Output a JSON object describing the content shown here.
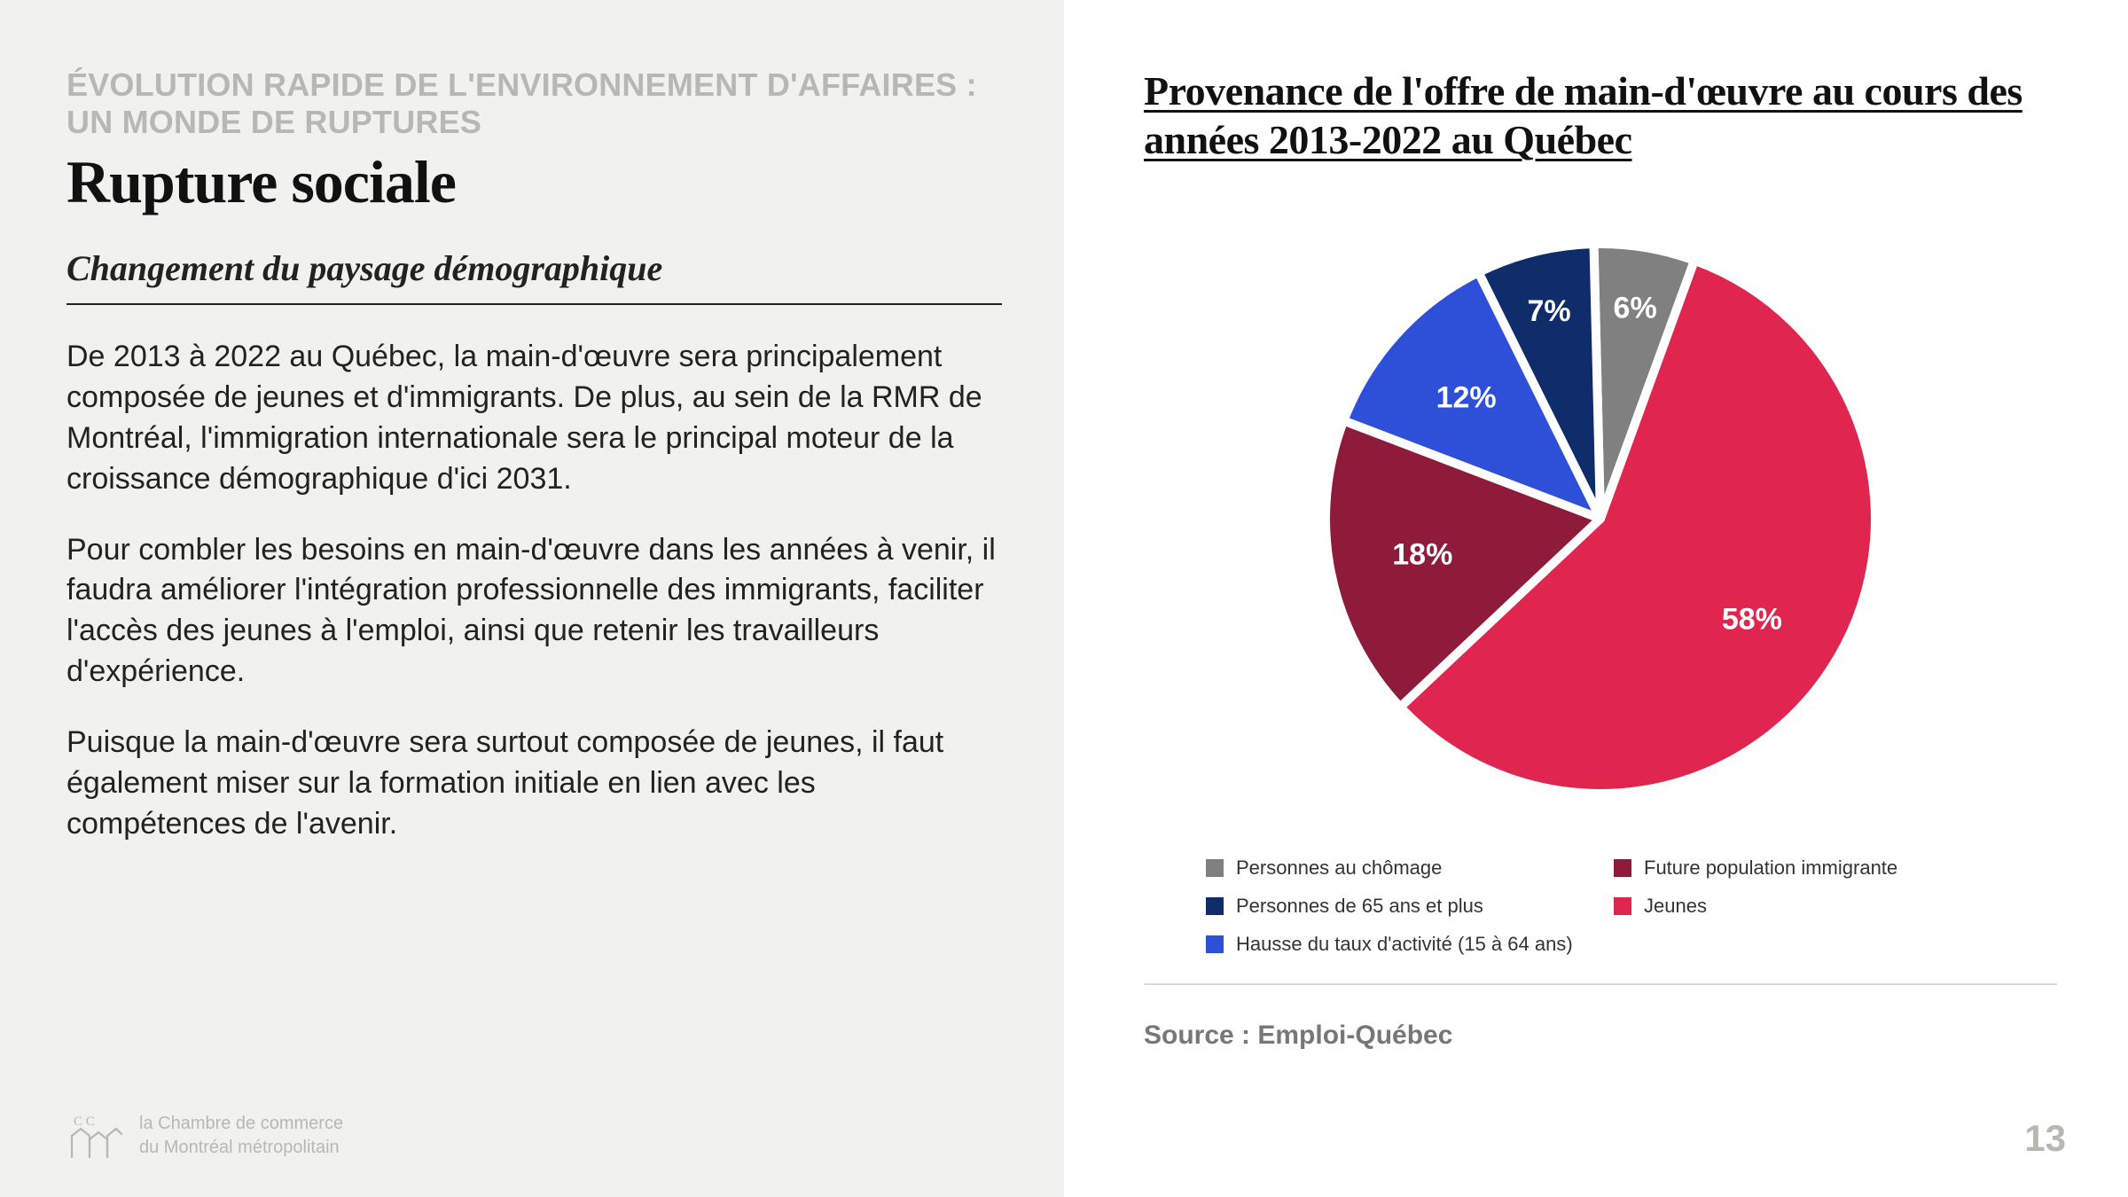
{
  "left": {
    "eyebrow": "ÉVOLUTION RAPIDE DE L'ENVIRONNEMENT D'AFFAIRES : UN MONDE DE RUPTURES",
    "title": "Rupture sociale",
    "subtitle": "Changement du paysage démographique",
    "paragraphs": [
      "De 2013 à 2022 au Québec, la main-d'œuvre sera principalement composée de jeunes et d'immigrants. De plus, au sein de la RMR de Montréal, l'immigration internationale sera le principal moteur de la croissance démographique d'ici 2031.",
      "Pour combler les besoins en main-d'œuvre dans les années à venir, il faudra améliorer l'intégration professionnelle des immigrants, faciliter l'accès des jeunes à l'emploi, ainsi que retenir les travailleurs d'expérience.",
      "Puisque la main-d'œuvre sera surtout composée de jeunes, il faut également miser sur la formation initiale en lien avec les compétences de l'avenir."
    ],
    "logo_text_line1": "la Chambre de commerce",
    "logo_text_line2": "du Montréal métropolitain"
  },
  "right": {
    "chart_title": "Provenance de l'offre de main-d'œuvre au cours des années 2013-2022 au Québec",
    "source": "Source : Emploi-Québec",
    "page_number": "13"
  },
  "chart": {
    "type": "pie",
    "radius": 310,
    "gap_color": "#ffffff",
    "gap_width": 10,
    "start_angle_deg": 70,
    "label_fontsize": 34,
    "label_fontweight": 800,
    "label_color": "#ffffff",
    "label_radius_factor": 0.66,
    "slices": [
      {
        "value": 6,
        "pct_label": "6%",
        "color": "#808080",
        "legend": "Personnes au chômage"
      },
      {
        "value": 7,
        "pct_label": "7%",
        "color": "#0f2c6b",
        "legend": "Personnes de 65 ans et plus"
      },
      {
        "value": 12,
        "pct_label": "12%",
        "color": "#2e4fd8",
        "legend": "Hausse du taux d'activité (15 à 64 ans)"
      },
      {
        "value": 18,
        "pct_label": "18%",
        "color": "#8f1b3a",
        "legend": "Future population immigrante"
      },
      {
        "value": 58,
        "pct_label": "58%",
        "color": "#e0264f",
        "legend": "Jeunes"
      }
    ],
    "legend_order": [
      0,
      3,
      1,
      4,
      2
    ],
    "legend_marker_size": 20,
    "legend_fontsize": 22
  },
  "colors": {
    "left_bg": "#f1f1ef",
    "right_bg": "#ffffff",
    "muted_text": "#b7b7b4",
    "body_text": "#222222",
    "divider": "#d9d9d6"
  }
}
